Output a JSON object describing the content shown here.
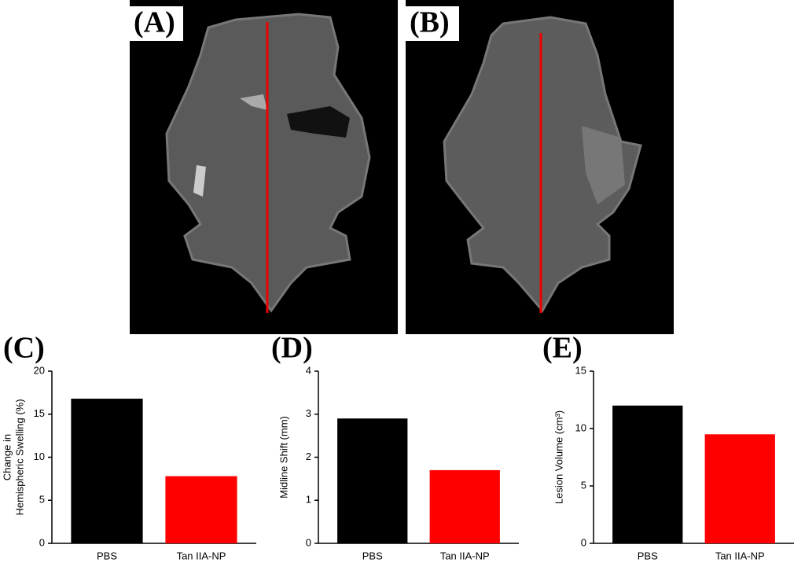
{
  "images": [
    {
      "label": "(A)"
    },
    {
      "label": "(B)"
    }
  ],
  "chart_data": [
    {
      "type": "bar",
      "label": "(C)",
      "ylabel": [
        "Change in",
        "Hemispheric Swelling (%)"
      ],
      "categories": [
        "PBS",
        "Tan IIA-NP"
      ],
      "values": [
        16.8,
        7.8
      ],
      "colors": [
        "#000000",
        "#ff0000"
      ],
      "ylim": [
        0,
        20
      ],
      "yticks": [
        0,
        5,
        10,
        15,
        20
      ]
    },
    {
      "type": "bar",
      "label": "(D)",
      "ylabel": "Midline Shift  (mm)",
      "categories": [
        "PBS",
        "Tan IIA-NP"
      ],
      "values": [
        2.9,
        1.7
      ],
      "colors": [
        "#000000",
        "#ff0000"
      ],
      "ylim": [
        0,
        4
      ],
      "yticks": [
        0,
        1,
        2,
        3,
        4
      ]
    },
    {
      "type": "bar",
      "label": "(E)",
      "ylabel": "Lesion Volume  (cm³)",
      "categories": [
        "PBS",
        "Tan IIA-NP"
      ],
      "values": [
        12,
        9.5
      ],
      "colors": [
        "#000000",
        "#ff0000"
      ],
      "ylim": [
        0,
        15
      ],
      "yticks": [
        0,
        5,
        10,
        15
      ]
    }
  ]
}
